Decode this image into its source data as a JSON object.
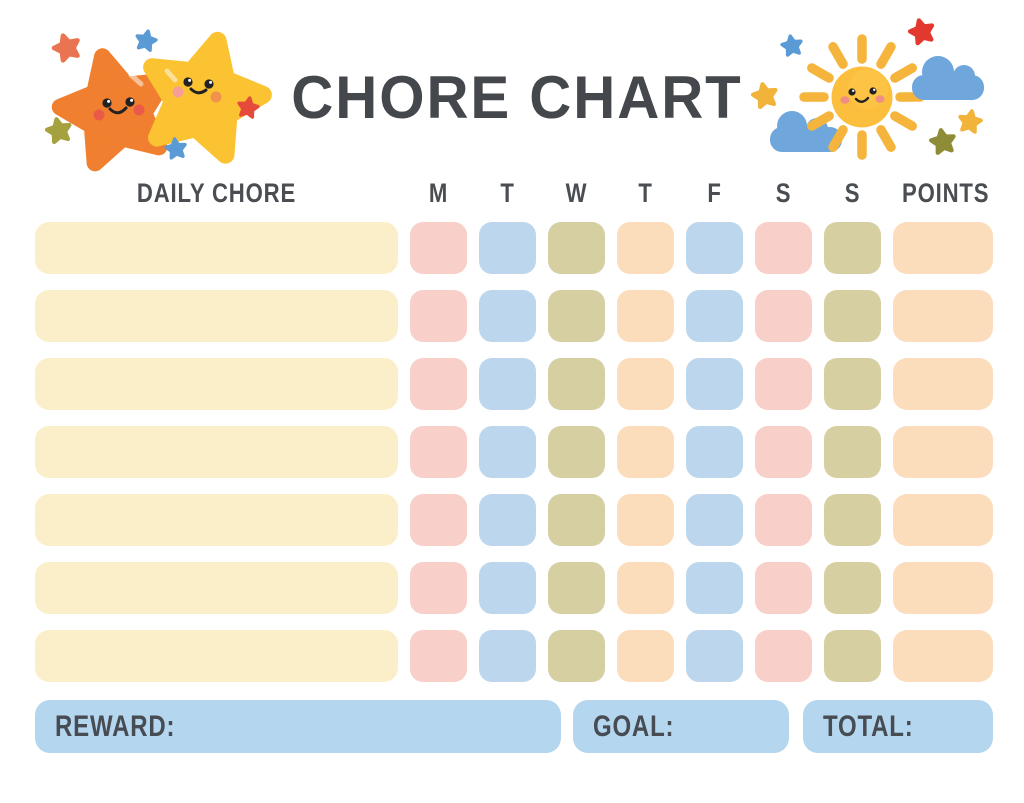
{
  "title": "CHORE CHART",
  "header": {
    "daily_chore": "DAILY CHORE",
    "days": [
      "M",
      "T",
      "W",
      "T",
      "F",
      "S",
      "S"
    ],
    "points": "POINTS"
  },
  "grid": {
    "num_rows": 7,
    "rows": [
      {
        "chore": "",
        "days": [
          "",
          "",
          "",
          "",
          "",
          "",
          ""
        ],
        "points": ""
      },
      {
        "chore": "",
        "days": [
          "",
          "",
          "",
          "",
          "",
          "",
          ""
        ],
        "points": ""
      },
      {
        "chore": "",
        "days": [
          "",
          "",
          "",
          "",
          "",
          "",
          ""
        ],
        "points": ""
      },
      {
        "chore": "",
        "days": [
          "",
          "",
          "",
          "",
          "",
          "",
          ""
        ],
        "points": ""
      },
      {
        "chore": "",
        "days": [
          "",
          "",
          "",
          "",
          "",
          "",
          ""
        ],
        "points": ""
      },
      {
        "chore": "",
        "days": [
          "",
          "",
          "",
          "",
          "",
          "",
          ""
        ],
        "points": ""
      },
      {
        "chore": "",
        "days": [
          "",
          "",
          "",
          "",
          "",
          "",
          ""
        ],
        "points": ""
      }
    ]
  },
  "footer": {
    "reward_label": "REWARD:",
    "goal_label": "GOAL:",
    "total_label": "TOTAL:"
  },
  "palette": {
    "chore_bar": "#FAEFC9",
    "day_colors": [
      "#F8CFC9",
      "#BCD6EE",
      "#D5CFA1",
      "#FBDDBB",
      "#BCD6EE",
      "#F8CFC9",
      "#D5CFA1"
    ],
    "points_cell": "#FBDDBB",
    "footer_bar": "#B5D6EF",
    "text_dark": "#474A4E",
    "orange_star": "#F0802F",
    "yellow_star": "#FBC232",
    "sun_body": "#FCBE3D",
    "sun_rays": "#F5B43C",
    "cloud_blue": "#6FA6DB",
    "mini_star_red": "#E2382E",
    "mini_star_red_orange": "#E97451",
    "mini_star_blue": "#5B9BD5",
    "mini_star_olive": "#A5A13F",
    "mini_star_dark_olive": "#8E8C36",
    "mini_star_yellow": "#F2B33B"
  },
  "icons": [
    "orange-star-icon",
    "yellow-star-icon",
    "sun-icon",
    "cloud-icon",
    "small-star-icon"
  ]
}
